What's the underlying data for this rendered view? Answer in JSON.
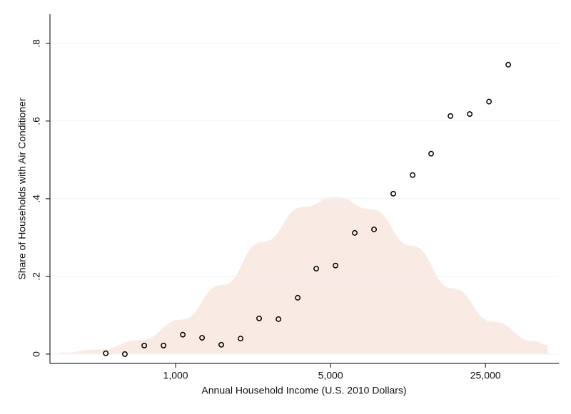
{
  "chart_data": {
    "type": "scatter",
    "x_label": "Annual Household Income (U.S. 2010 Dollars)",
    "y_label": "Share of Households with Air Conditioner",
    "xscale": "log",
    "xlim": [
      271,
      53600
    ],
    "ylim": [
      -0.024,
      0.875
    ],
    "xticks": [
      {
        "value": 1000,
        "label": "1,000"
      },
      {
        "value": 5000,
        "label": "5,000"
      },
      {
        "value": 25000,
        "label": "25,000"
      }
    ],
    "yticks": [
      0,
      {
        "value": 0.2,
        "label": ".2"
      },
      {
        "value": 0.4,
        "label": ".4"
      },
      {
        "value": 0.6,
        "label": ".6"
      },
      {
        "value": 0.8,
        "label": ".8"
      }
    ],
    "grid": true,
    "series": [
      {
        "color": "#000000",
        "x": [
          484,
          590,
          722,
          882,
          1077,
          1316,
          1607,
          1964,
          2381,
          2911,
          3556,
          4310,
          5265,
          6430,
          7856,
          9596,
          11730,
          14220,
          17380,
          21230,
          25940,
          31690
        ],
        "values": [
          0.002,
          0,
          0.022,
          0.022,
          0.05,
          0.042,
          0.024,
          0.04,
          0.092,
          0.09,
          0.145,
          0.22,
          0.228,
          0.312,
          0.321,
          0.413,
          0.461,
          0.516,
          0.613,
          0.618,
          0.65,
          0.745
        ]
      }
    ],
    "density": {
      "color": "#f9ebe4",
      "x": [
        298,
        456,
        695,
        1061,
        1619,
        2471,
        3770,
        5265,
        7630,
        11640,
        17770,
        27100,
        41400,
        47640
      ],
      "values": [
        0.003,
        0.012,
        0.036,
        0.089,
        0.178,
        0.289,
        0.379,
        0.405,
        0.373,
        0.279,
        0.169,
        0.083,
        0.033,
        0.023
      ]
    }
  }
}
